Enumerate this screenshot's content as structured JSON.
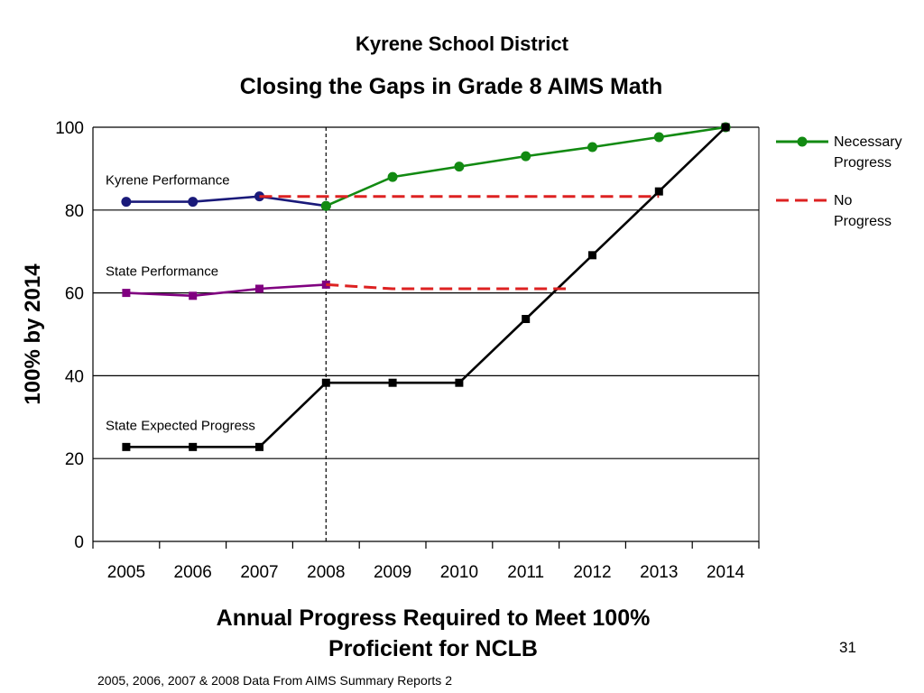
{
  "header": {
    "title": "Kyrene School District",
    "subtitle": "Closing the Gaps in Grade 8 AIMS Math"
  },
  "footer": {
    "page_number": "31",
    "source": "2005, 2006, 2007 & 2008 Data From AIMS Summary Reports 2"
  },
  "chart_data": {
    "type": "line",
    "title": "Closing the Gaps in Grade 8 AIMS Math",
    "xlabel": "Annual Progress Required to Meet 100% Proficient for NCLB",
    "ylabel": "100% by 2014",
    "categories": [
      "2005",
      "2006",
      "2007",
      "2008",
      "2009",
      "2010",
      "2011",
      "2012",
      "2013",
      "2014"
    ],
    "ylim": [
      0,
      100
    ],
    "yticks": [
      0,
      20,
      40,
      60,
      80,
      100
    ],
    "grid": true,
    "legend_position": "right",
    "series": [
      {
        "annotation": "Kyrene Performance",
        "color": "#1a1a7a",
        "marker": "circle",
        "x": [
          "2005",
          "2006",
          "2007",
          "2008"
        ],
        "values": [
          82,
          82,
          83.3,
          81
        ]
      },
      {
        "name": "Necessary Progress",
        "color": "#128a12",
        "marker": "circle",
        "x": [
          "2008",
          "2009",
          "2010",
          "2011",
          "2012",
          "2013",
          "2014"
        ],
        "values": [
          81,
          88,
          90.5,
          93,
          95.2,
          97.6,
          100
        ]
      },
      {
        "annotation": "State Performance",
        "color": "#800080",
        "marker": "square",
        "x": [
          "2005",
          "2006",
          "2007",
          "2008"
        ],
        "values": [
          60,
          59.3,
          61,
          62
        ]
      },
      {
        "annotation": "State Expected Progress",
        "color": "#000000",
        "marker": "square",
        "x": [
          "2005",
          "2006",
          "2007",
          "2008",
          "2009",
          "2010",
          "2011",
          "2012",
          "2013",
          "2014"
        ],
        "values": [
          22.8,
          22.8,
          22.8,
          38.3,
          38.3,
          38.3,
          53.7,
          69.1,
          84.5,
          100
        ]
      },
      {
        "name": "No Progress",
        "color": "#dd2222",
        "dashed": true,
        "x_range": [
          "2007",
          "2013"
        ],
        "value": 83.3
      },
      {
        "name": "No Progress",
        "color": "#dd2222",
        "dashed": true,
        "points": [
          [
            "2008",
            62
          ],
          [
            "2009",
            61
          ],
          [
            "2011.6",
            61
          ]
        ]
      }
    ],
    "reference_line": {
      "x": "2008",
      "style": "dotted"
    },
    "legend": [
      {
        "label_lines": [
          "Necessary",
          "Progress"
        ],
        "color": "#128a12",
        "marker": "circle"
      },
      {
        "label_lines": [
          "No",
          "Progress"
        ],
        "color": "#dd2222",
        "dashed": true
      }
    ]
  }
}
